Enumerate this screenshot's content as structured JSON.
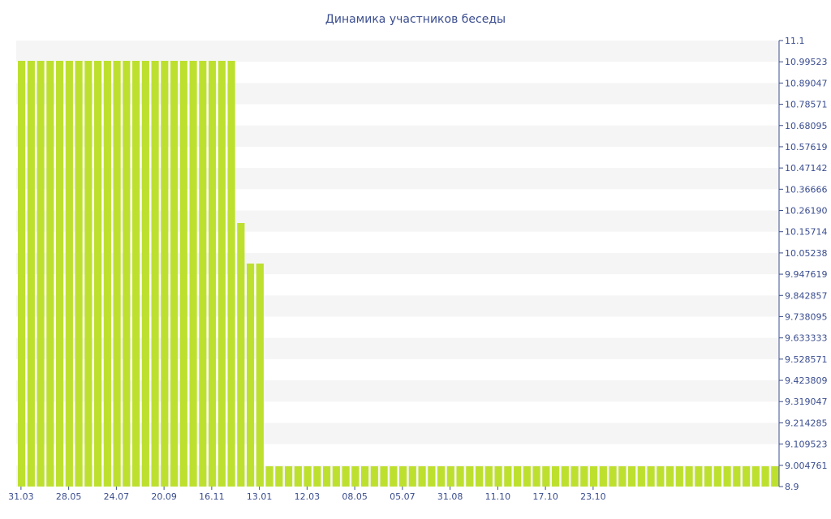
{
  "chart_data": {
    "type": "bar",
    "title": "Динамика участников беседы",
    "xlabel": "",
    "ylabel": "",
    "ylim": [
      8.9,
      11.1
    ],
    "y_axis_side": "right",
    "grid": true,
    "bar_color": "#bde02f",
    "title_color": "#3a4d8f",
    "band_color": "#f5f5f5",
    "x_ticks": [
      {
        "label": "31.03",
        "index": 0
      },
      {
        "label": "28.05",
        "index": 5
      },
      {
        "label": "24.07",
        "index": 10
      },
      {
        "label": "20.09",
        "index": 15
      },
      {
        "label": "16.11",
        "index": 20
      },
      {
        "label": "13.01",
        "index": 25
      },
      {
        "label": "12.03",
        "index": 30
      },
      {
        "label": "08.05",
        "index": 35
      },
      {
        "label": "05.07",
        "index": 40
      },
      {
        "label": "31.08",
        "index": 45
      },
      {
        "label": "11.10",
        "index": 50
      },
      {
        "label": "17.10",
        "index": 55
      },
      {
        "label": "23.10",
        "index": 60
      }
    ],
    "y_ticks": [
      "11.1",
      "10.99523",
      "10.89047",
      "10.78571",
      "10.68095",
      "10.57619",
      "10.47142",
      "10.36666",
      "10.26190",
      "10.15714",
      "10.05238",
      "9.947619",
      "9.842857",
      "9.738095",
      "9.633333",
      "9.528571",
      "9.423809",
      "9.319047",
      "9.214285",
      "9.109523",
      "9.004761",
      "8.9"
    ],
    "values": [
      11,
      11,
      11,
      11,
      11,
      11,
      11,
      11,
      11,
      11,
      11,
      11,
      11,
      11,
      11,
      11,
      11,
      11,
      11,
      11,
      11,
      11,
      11,
      10.2,
      10,
      10,
      9,
      9,
      9,
      9,
      9,
      9,
      9,
      9,
      9,
      9,
      9,
      9,
      9,
      9,
      9,
      9,
      9,
      9,
      9,
      9,
      9,
      9,
      9,
      9,
      9,
      9,
      9,
      9,
      9,
      9,
      9,
      9,
      9,
      9,
      9,
      9,
      9,
      9,
      9,
      9,
      9,
      9,
      9,
      9,
      9,
      9,
      9,
      9,
      9,
      9,
      9,
      9,
      9,
      9
    ]
  }
}
